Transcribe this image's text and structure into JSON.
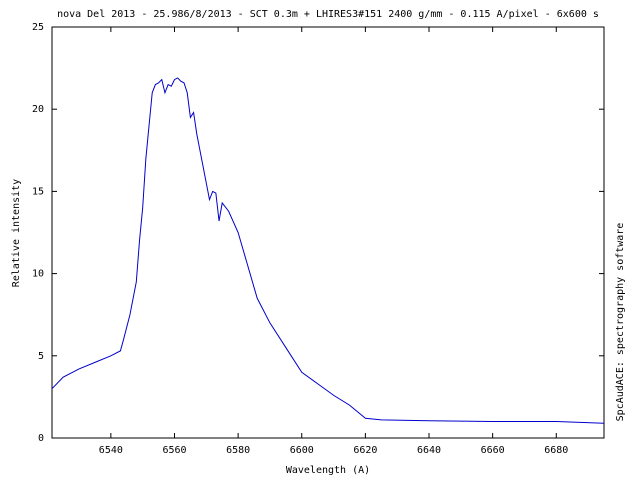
{
  "chart_data": {
    "type": "line",
    "title": "nova Del 2013 - 25.986/8/2013 - SCT 0.3m + LHIRES3#151 2400 g/mm - 0.115 A/pixel - 6x600 s",
    "x_label": "Wavelength (A)",
    "y_label": "Relative intensity",
    "annotation": "SpcAudACE: spectrography software",
    "x": [
      6521.5,
      6525,
      6530,
      6535,
      6540,
      6543,
      6544,
      6546,
      6548,
      6549,
      6550,
      6551,
      6552,
      6553,
      6554,
      6555,
      6556,
      6557,
      6558,
      6559,
      6560,
      6561,
      6562,
      6563,
      6564,
      6565,
      6566,
      6567,
      6568,
      6569,
      6570,
      6571,
      6572,
      6573,
      6574,
      6575,
      6577,
      6580,
      6583,
      6586,
      6590,
      6595,
      6600,
      6605,
      6610,
      6615,
      6620,
      6625,
      6640,
      6660,
      6680,
      6695
    ],
    "series": [
      {
        "name": "nova Del 2013",
        "color": "#0000cc",
        "values": [
          3.0,
          3.7,
          4.2,
          4.6,
          5.0,
          5.3,
          6.0,
          7.5,
          9.5,
          12,
          14,
          17,
          19,
          21.0,
          21.5,
          21.6,
          21.8,
          21.0,
          21.5,
          21.4,
          21.8,
          21.9,
          21.7,
          21.6,
          21.0,
          19.5,
          19.8,
          18.5,
          17.5,
          16.5,
          15.5,
          14.5,
          15.0,
          14.9,
          13.2,
          14.3,
          13.8,
          12.5,
          10.5,
          8.5,
          7.0,
          5.5,
          4.0,
          3.3,
          2.6,
          2.0,
          1.2,
          1.1,
          1.05,
          1.0,
          1.0,
          0.9
        ]
      }
    ],
    "xlim": [
      6521.5,
      6695
    ],
    "ylim": [
      0,
      25
    ],
    "xticks": [
      6540,
      6560,
      6580,
      6600,
      6620,
      6640,
      6660,
      6680
    ],
    "yticks": [
      0,
      5,
      10,
      15,
      20,
      25
    ],
    "grid": false
  }
}
